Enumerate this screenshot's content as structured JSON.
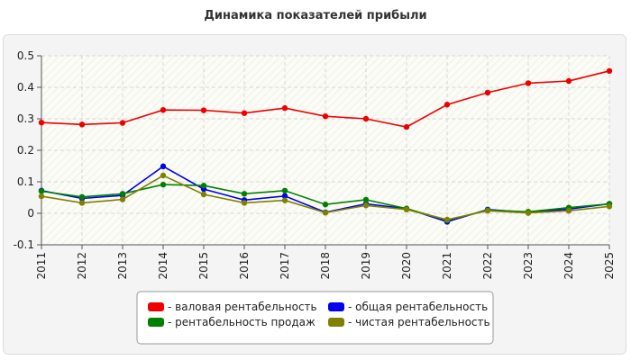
{
  "chart_data": {
    "type": "line",
    "title": "Динамика показателей прибыли",
    "xlabel": "",
    "ylabel": "",
    "x": [
      "2011",
      "2012",
      "2013",
      "2014",
      "2015",
      "2016",
      "2017",
      "2018",
      "2019",
      "2020",
      "2021",
      "2022",
      "2023",
      "2024",
      "2025"
    ],
    "ylim": [
      -0.1,
      0.5
    ],
    "yticks": [
      "-0.1",
      "0",
      "0.1",
      "0.2",
      "0.3",
      "0.4",
      "0.5"
    ],
    "grid": true,
    "legend_position": "bottom",
    "series": [
      {
        "name": "- валовая рентабельность",
        "color": "#ee0000",
        "values": [
          0.288,
          0.282,
          0.287,
          0.328,
          0.327,
          0.318,
          0.334,
          0.308,
          0.3,
          0.274,
          0.345,
          0.383,
          0.413,
          0.42,
          0.452
        ]
      },
      {
        "name": "- общая рентабельность",
        "color": "#0000ee",
        "values": [
          0.072,
          0.047,
          0.057,
          0.149,
          0.077,
          0.042,
          0.055,
          0.003,
          0.03,
          0.015,
          -0.027,
          0.012,
          0.003,
          0.013,
          0.03
        ]
      },
      {
        "name": "- рентабельность продаж",
        "color": "#008000",
        "values": [
          0.07,
          0.052,
          0.062,
          0.091,
          0.088,
          0.062,
          0.072,
          0.028,
          0.043,
          0.015,
          -0.022,
          0.01,
          0.005,
          0.018,
          0.03
        ]
      },
      {
        "name": "- чистая рентабельность",
        "color": "#808000",
        "values": [
          0.054,
          0.033,
          0.044,
          0.12,
          0.06,
          0.033,
          0.041,
          0.002,
          0.025,
          0.012,
          -0.02,
          0.008,
          0.001,
          0.008,
          0.022
        ]
      }
    ]
  }
}
